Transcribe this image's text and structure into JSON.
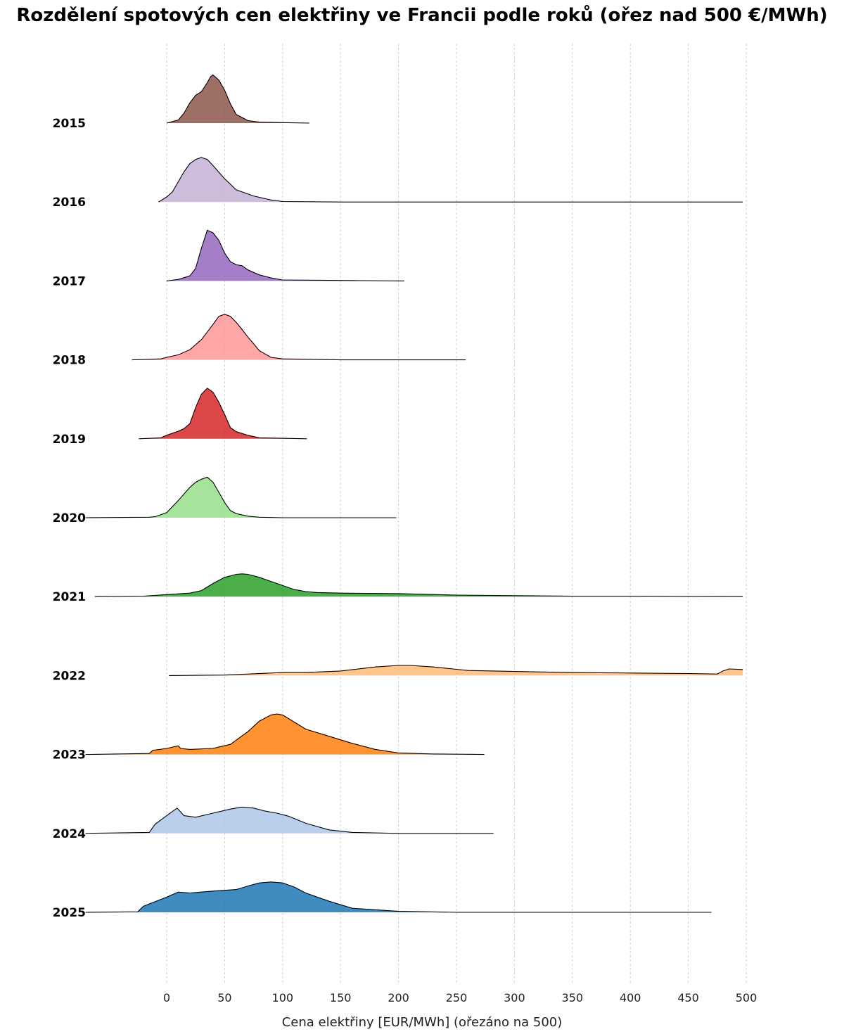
{
  "chart_data": {
    "type": "area",
    "subtype": "ridgeline",
    "title": "Rozdělení spotových cen elektřiny ve Francii podle roků (ořez nad 500 €/MWh)",
    "xlabel": "Cena elektřiny [EUR/MWh] (ořezáno na 500)",
    "ylabel": "",
    "xlim": [
      -70,
      500
    ],
    "xticks": [
      0,
      50,
      100,
      150,
      200,
      250,
      300,
      350,
      400,
      450,
      500
    ],
    "grid": "vertical dashed",
    "series": [
      {
        "name": "2015",
        "color": "#8c564b",
        "x": [
          0,
          10,
          15,
          20,
          25,
          30,
          35,
          38,
          40,
          45,
          50,
          55,
          60,
          70,
          80,
          100,
          123
        ],
        "y": [
          0.0,
          0.06,
          0.2,
          0.4,
          0.55,
          0.62,
          0.8,
          0.92,
          0.95,
          0.85,
          0.65,
          0.38,
          0.17,
          0.05,
          0.02,
          0.01,
          0.0
        ]
      },
      {
        "name": "2016",
        "color": "#c5b0d5",
        "x": [
          -7,
          0,
          5,
          10,
          15,
          20,
          25,
          30,
          35,
          40,
          50,
          60,
          75,
          90,
          100,
          150,
          300,
          497
        ],
        "y": [
          0.0,
          0.1,
          0.2,
          0.4,
          0.6,
          0.76,
          0.84,
          0.88,
          0.84,
          0.72,
          0.46,
          0.24,
          0.12,
          0.04,
          0.01,
          0.0,
          0.0,
          0.0
        ]
      },
      {
        "name": "2017",
        "color": "#9467bd",
        "x": [
          0,
          10,
          20,
          25,
          30,
          35,
          40,
          45,
          50,
          55,
          60,
          65,
          70,
          80,
          90,
          100,
          150,
          205
        ],
        "y": [
          0.0,
          0.03,
          0.1,
          0.25,
          0.65,
          1.0,
          0.95,
          0.8,
          0.55,
          0.38,
          0.32,
          0.3,
          0.22,
          0.12,
          0.06,
          0.02,
          0.01,
          0.0
        ]
      },
      {
        "name": "2018",
        "color": "#ff9896",
        "x": [
          -30,
          -5,
          0,
          10,
          20,
          30,
          40,
          45,
          50,
          55,
          60,
          65,
          70,
          75,
          80,
          90,
          100,
          150,
          258
        ],
        "y": [
          0.0,
          0.02,
          0.05,
          0.1,
          0.2,
          0.4,
          0.7,
          0.86,
          0.9,
          0.86,
          0.74,
          0.6,
          0.45,
          0.32,
          0.18,
          0.05,
          0.02,
          0.0,
          0.0
        ]
      },
      {
        "name": "2019",
        "color": "#d62728",
        "x": [
          -24,
          -5,
          0,
          10,
          15,
          20,
          25,
          30,
          35,
          40,
          45,
          50,
          55,
          60,
          70,
          80,
          100,
          121
        ],
        "y": [
          0.0,
          0.02,
          0.07,
          0.15,
          0.2,
          0.3,
          0.62,
          0.88,
          1.0,
          0.92,
          0.72,
          0.48,
          0.22,
          0.14,
          0.07,
          0.02,
          0.01,
          0.0
        ]
      },
      {
        "name": "2020",
        "color": "#98df8a",
        "x": [
          -70,
          -15,
          -10,
          0,
          10,
          20,
          25,
          30,
          35,
          40,
          45,
          50,
          55,
          60,
          70,
          80,
          100,
          150,
          198
        ],
        "y": [
          0.0,
          0.01,
          0.02,
          0.1,
          0.34,
          0.6,
          0.7,
          0.76,
          0.8,
          0.7,
          0.5,
          0.3,
          0.14,
          0.08,
          0.03,
          0.01,
          0.0,
          0.0,
          0.0
        ]
      },
      {
        "name": "2021",
        "color": "#2ca02c",
        "x": [
          -62,
          -20,
          0,
          20,
          30,
          40,
          50,
          60,
          65,
          70,
          80,
          90,
          100,
          110,
          120,
          130,
          150,
          200,
          250,
          300,
          350,
          400,
          497
        ],
        "y": [
          0.0,
          0.01,
          0.04,
          0.07,
          0.12,
          0.26,
          0.38,
          0.44,
          0.45,
          0.44,
          0.38,
          0.3,
          0.22,
          0.14,
          0.1,
          0.08,
          0.07,
          0.06,
          0.03,
          0.02,
          0.01,
          0.01,
          0.0
        ]
      },
      {
        "name": "2022",
        "color": "#ffbb78",
        "x": [
          2,
          50,
          100,
          120,
          150,
          180,
          200,
          210,
          230,
          260,
          300,
          350,
          400,
          450,
          475,
          480,
          485,
          497
        ],
        "y": [
          0.0,
          0.01,
          0.06,
          0.06,
          0.09,
          0.17,
          0.2,
          0.2,
          0.17,
          0.1,
          0.08,
          0.06,
          0.05,
          0.04,
          0.03,
          0.09,
          0.13,
          0.12
        ]
      },
      {
        "name": "2023",
        "color": "#ff7f0e",
        "x": [
          -70,
          -15,
          -12,
          0,
          10,
          12,
          20,
          40,
          55,
          70,
          80,
          90,
          95,
          100,
          110,
          120,
          140,
          160,
          180,
          200,
          230,
          274
        ],
        "y": [
          0.0,
          0.02,
          0.08,
          0.12,
          0.17,
          0.12,
          0.1,
          0.12,
          0.2,
          0.45,
          0.66,
          0.78,
          0.8,
          0.78,
          0.64,
          0.5,
          0.36,
          0.22,
          0.1,
          0.03,
          0.01,
          0.0
        ]
      },
      {
        "name": "2024",
        "color": "#aec7e8",
        "x": [
          -70,
          -15,
          -10,
          0,
          9,
          15,
          25,
          40,
          55,
          65,
          75,
          85,
          95,
          105,
          120,
          140,
          160,
          200,
          282
        ],
        "y": [
          0.0,
          0.02,
          0.18,
          0.35,
          0.5,
          0.35,
          0.32,
          0.4,
          0.48,
          0.52,
          0.5,
          0.44,
          0.4,
          0.34,
          0.2,
          0.07,
          0.02,
          0.0,
          0.0
        ]
      },
      {
        "name": "2025",
        "color": "#1f77b4",
        "x": [
          -70,
          -25,
          -20,
          0,
          10,
          20,
          40,
          60,
          70,
          80,
          90,
          100,
          110,
          120,
          140,
          160,
          200,
          250,
          470
        ],
        "y": [
          0.0,
          0.01,
          0.12,
          0.3,
          0.4,
          0.38,
          0.42,
          0.45,
          0.52,
          0.58,
          0.6,
          0.58,
          0.5,
          0.38,
          0.22,
          0.08,
          0.02,
          0.0,
          0.0
        ]
      }
    ]
  }
}
